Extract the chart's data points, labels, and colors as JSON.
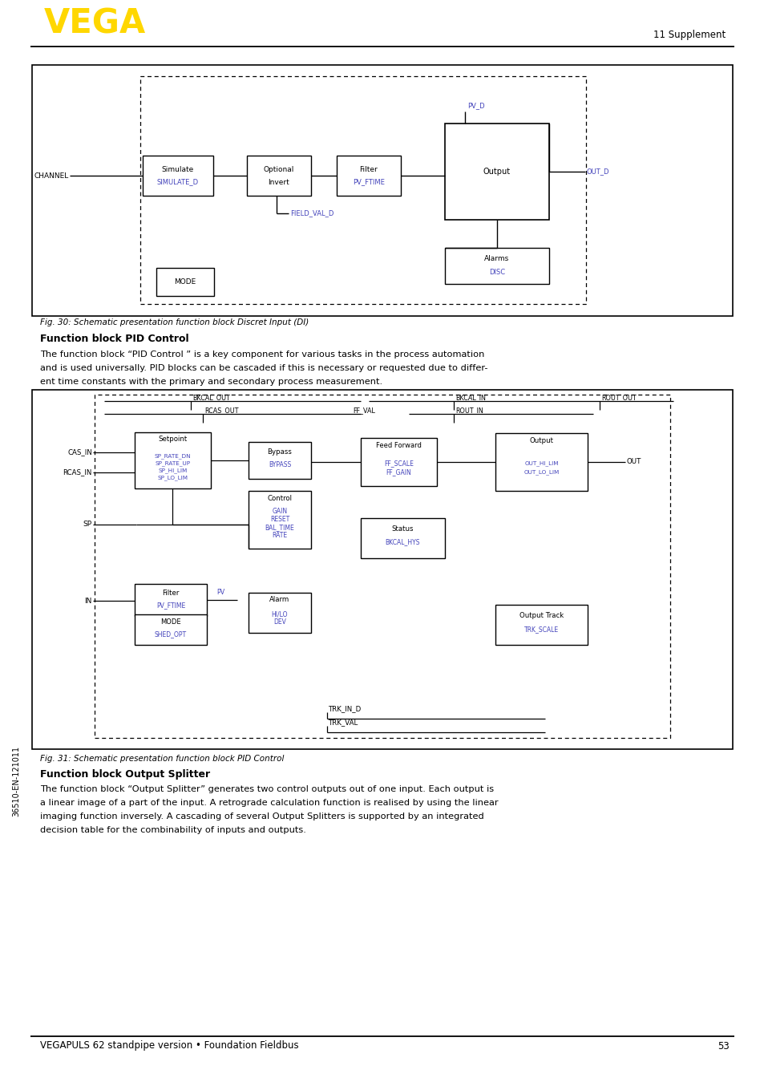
{
  "title_header": "11 Supplement",
  "vega_color": "#FFD700",
  "footer_text": "VEGAPULS 62 standpipe version • Foundation Fieldbus",
  "footer_page": "53",
  "fig30_caption": "Fig. 30: Schematic presentation function block Discret Input (DI)",
  "fig31_caption": "Fig. 31: Schematic presentation function block PID Control",
  "section_title1": "Function block PID Control",
  "section_body1_l1": "The function block “PID Control ” is a key component for various tasks in the process automation",
  "section_body1_l2": "and is used universally. PID blocks can be cascaded if this is necessary or requested due to differ-",
  "section_body1_l3": "ent time constants with the primary and secondary process measurement.",
  "section_title2": "Function block Output Splitter",
  "section_body2_l1": "The function block “Output Splitter” generates two control outputs out of one input. Each output is",
  "section_body2_l2": "a linear image of a part of the input. A retrograde calculation function is realised by using the linear",
  "section_body2_l3": "imaging function inversely. A cascading of several Output Splitters is supported by an integrated",
  "section_body2_l4": "decision table for the combinability of inputs and outputs.",
  "sidebar_text": "36510-EN-121011",
  "lc": "#4444bb",
  "bg": "#ffffff",
  "tc": "#000000"
}
